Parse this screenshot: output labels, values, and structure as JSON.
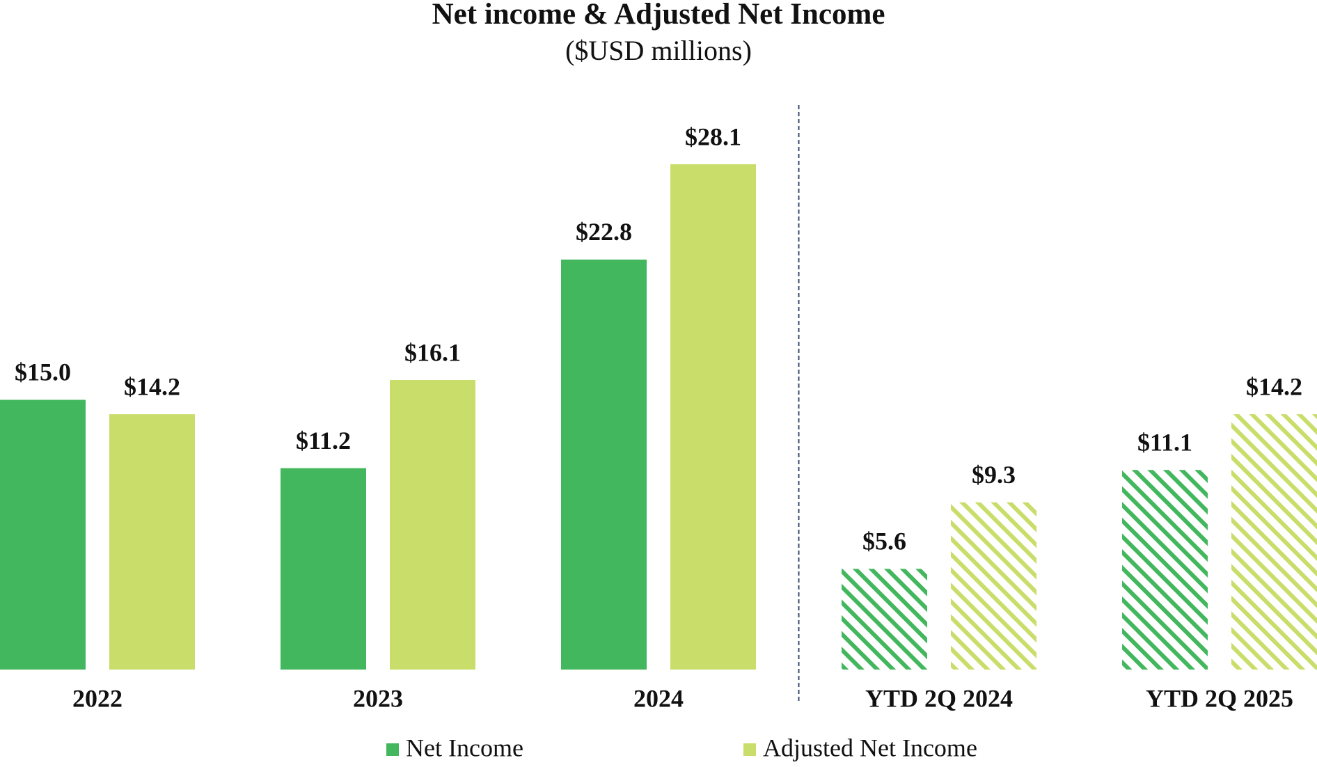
{
  "chart_data": {
    "type": "bar",
    "title": "Net income & Adjusted Net Income",
    "subtitle": "($USD millions)",
    "categories": [
      "2022",
      "2023",
      "2024",
      "YTD 2Q 2024",
      "YTD 2Q 2025"
    ],
    "hatched": [
      false,
      false,
      false,
      true,
      true
    ],
    "series": [
      {
        "name": "Net Income",
        "color": "#43b75d",
        "values": [
          15.0,
          11.2,
          22.8,
          5.6,
          11.1
        ],
        "value_labels": [
          "$15.0",
          "$11.2",
          "$22.8",
          "$5.6",
          "$11.1"
        ]
      },
      {
        "name": "Adjusted Net Income",
        "color": "#c9dd6a",
        "values": [
          14.2,
          16.1,
          28.1,
          9.3,
          14.2
        ],
        "value_labels": [
          "$14.2",
          "$16.1",
          "$28.1",
          "$9.3",
          "$14.2"
        ]
      }
    ]
  }
}
